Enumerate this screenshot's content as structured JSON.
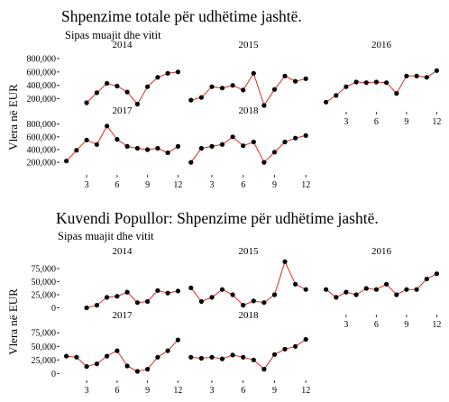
{
  "chart_data": [
    {
      "type": "line",
      "title": "Shpenzime totale për udhëtime jashtë.",
      "subtitle": "Sipas muajit dhe vitit",
      "ylabel": "Vlera në EUR",
      "xlabel": "",
      "x": [
        1,
        2,
        3,
        4,
        5,
        6,
        7,
        8,
        9,
        10,
        11,
        12
      ],
      "xticks": [
        3,
        6,
        9,
        12
      ],
      "xticklabels": [
        "3",
        "6",
        "9",
        "12"
      ],
      "ylim": [
        60000,
        880000
      ],
      "yticks": [
        200000,
        400000,
        600000,
        800000
      ],
      "yticklabels": [
        "200,000",
        "400,000",
        "600,000",
        "800,000"
      ],
      "grid": false,
      "line_color": "#d62d20",
      "point_color": "#000000",
      "panels": [
        {
          "name": "2014",
          "values": [
            null,
            null,
            140000,
            290000,
            430000,
            390000,
            300000,
            120000,
            380000,
            520000,
            580000,
            600000
          ]
        },
        {
          "name": "2015",
          "values": [
            180000,
            220000,
            380000,
            360000,
            400000,
            330000,
            580000,
            100000,
            340000,
            540000,
            460000,
            500000
          ]
        },
        {
          "name": "2016",
          "values": [
            150000,
            250000,
            380000,
            450000,
            440000,
            450000,
            440000,
            280000,
            540000,
            540000,
            520000,
            620000
          ]
        },
        {
          "name": "2017",
          "values": [
            220000,
            390000,
            550000,
            480000,
            770000,
            560000,
            450000,
            420000,
            400000,
            420000,
            350000,
            450000
          ]
        },
        {
          "name": "2018",
          "values": [
            200000,
            420000,
            450000,
            480000,
            600000,
            460000,
            520000,
            200000,
            360000,
            520000,
            580000,
            620000
          ]
        }
      ]
    },
    {
      "type": "line",
      "title": "Kuvendi Popullor: Shpenzime për udhëtime jashtë.",
      "subtitle": "Sipas muajit dhe vitit",
      "ylabel": "Vlera në EUR",
      "xlabel": "",
      "x": [
        1,
        2,
        3,
        4,
        5,
        6,
        7,
        8,
        9,
        10,
        11,
        12
      ],
      "xticks": [
        3,
        6,
        9,
        12
      ],
      "xticklabels": [
        "3",
        "6",
        "9",
        "12"
      ],
      "ylim": [
        -6000,
        92000
      ],
      "yticks": [
        0,
        25000,
        50000,
        75000
      ],
      "yticklabels": [
        "0",
        "25,000",
        "50,000",
        "75,000"
      ],
      "grid": false,
      "line_color": "#d62d20",
      "point_color": "#000000",
      "panels": [
        {
          "name": "2014",
          "values": [
            null,
            null,
            0,
            5000,
            20000,
            22000,
            30000,
            10000,
            12000,
            33000,
            28000,
            32000
          ]
        },
        {
          "name": "2015",
          "values": [
            38000,
            12000,
            20000,
            35000,
            25000,
            5000,
            13000,
            10000,
            25000,
            88000,
            45000,
            35000
          ]
        },
        {
          "name": "2016",
          "values": [
            35000,
            20000,
            30000,
            25000,
            37000,
            35000,
            45000,
            25000,
            35000,
            35000,
            55000,
            65000
          ]
        },
        {
          "name": "2017",
          "values": [
            32000,
            30000,
            13000,
            18000,
            32000,
            42000,
            14000,
            4000,
            8000,
            30000,
            42000,
            62000
          ]
        },
        {
          "name": "2018",
          "values": [
            30000,
            28000,
            30000,
            27000,
            34000,
            30000,
            25000,
            8000,
            35000,
            45000,
            50000,
            63000
          ]
        }
      ]
    }
  ]
}
